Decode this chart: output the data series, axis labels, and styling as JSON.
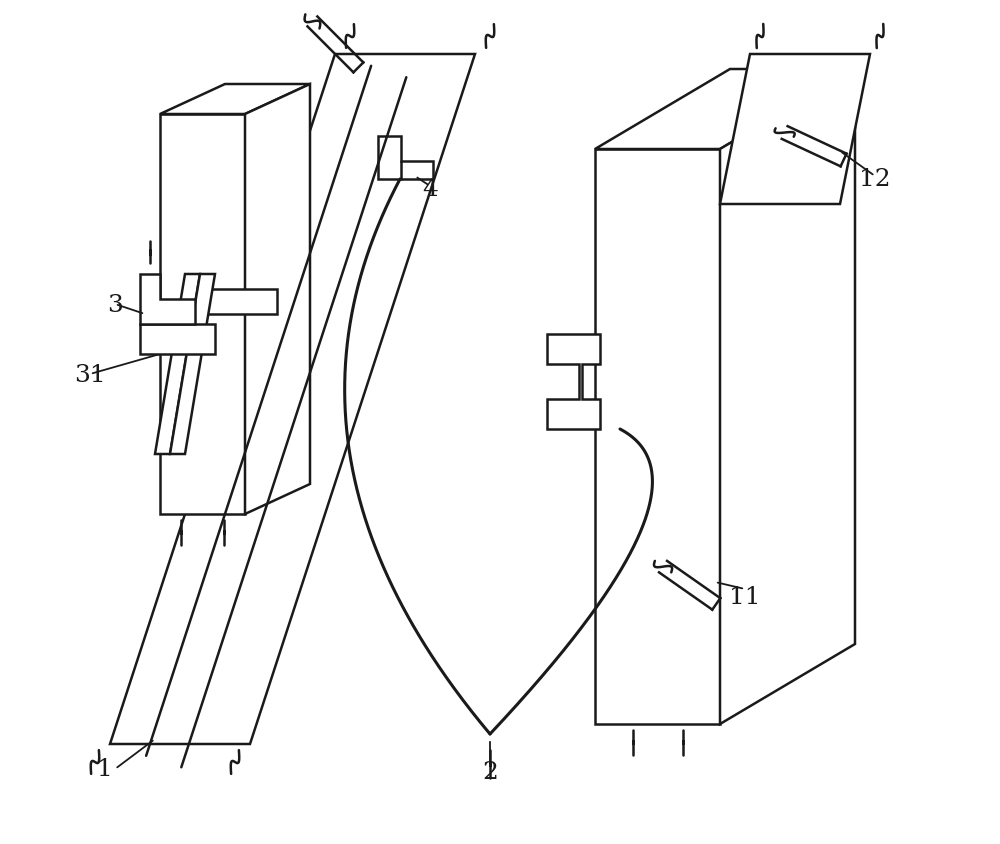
{
  "background_color": "#ffffff",
  "line_color": "#1a1a1a",
  "lw": 1.8,
  "fig_width": 10.0,
  "fig_height": 8.45
}
